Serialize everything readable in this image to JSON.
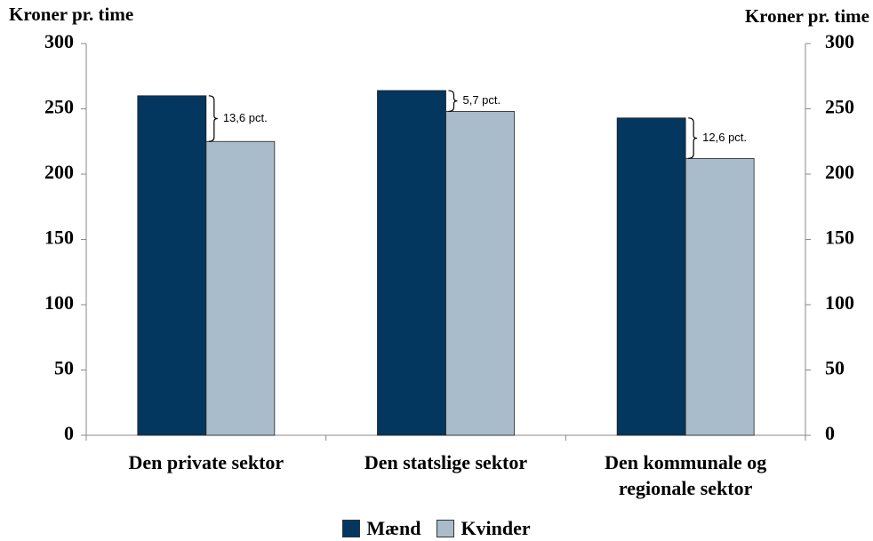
{
  "chart_data": {
    "type": "bar",
    "ylabel": "Kroner pr. time",
    "y2label": "Kroner pr. time",
    "categories": [
      "Den private sektor",
      "Den statslige sektor",
      "Den kommunale og regionale sektor"
    ],
    "series": [
      {
        "name": "Mænd",
        "color": "#04375f",
        "values": [
          260,
          264,
          243
        ]
      },
      {
        "name": "Kvinder",
        "color": "#a8bccc",
        "values": [
          225,
          248,
          212
        ]
      }
    ],
    "annotations": [
      "13,6 pct.",
      "5,7 pct.",
      "12,6 pct."
    ],
    "ylim": [
      0,
      300
    ],
    "yticks": [
      0,
      50,
      100,
      150,
      200,
      250,
      300
    ],
    "y2lim": [
      0,
      300
    ],
    "y2ticks": [
      0,
      50,
      100,
      150,
      200,
      250,
      300
    ]
  }
}
